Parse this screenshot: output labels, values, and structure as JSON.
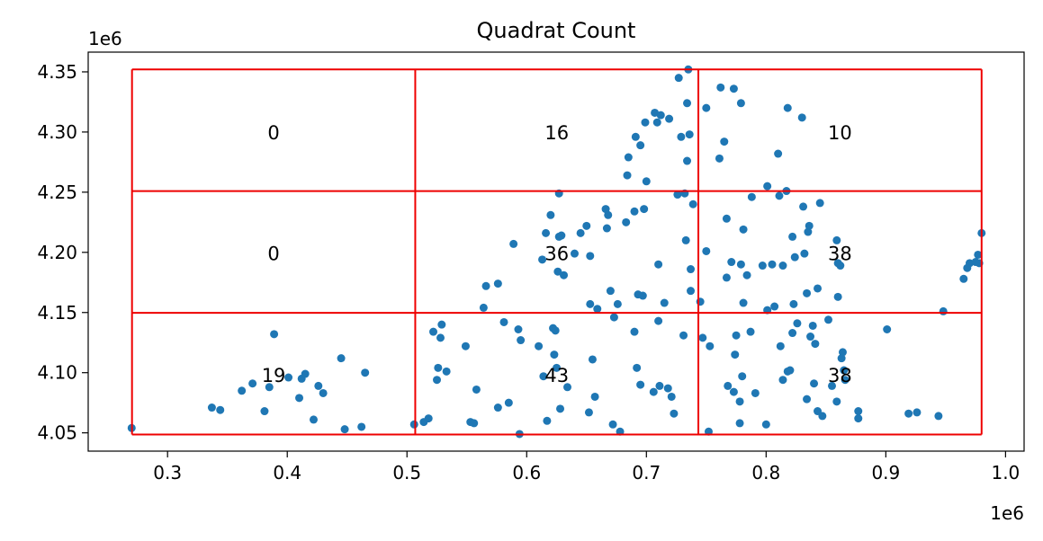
{
  "chart_data": {
    "type": "scatter",
    "title": "Quadrat Count",
    "x_offset_label": "1e6",
    "y_offset_label": "1e6",
    "xlim": [
      0.2337,
      1.0155
    ],
    "ylim": [
      4.0348,
      4.3664
    ],
    "x_ticks": [
      0.3,
      0.4,
      0.5,
      0.6,
      0.7,
      0.8,
      0.9,
      1.0
    ],
    "x_tick_labels": [
      "0.3",
      "0.4",
      "0.5",
      "0.6",
      "0.7",
      "0.8",
      "0.9",
      "1.0"
    ],
    "y_ticks": [
      4.05,
      4.1,
      4.15,
      4.2,
      4.25,
      4.3,
      4.35
    ],
    "y_tick_labels": [
      "4.05",
      "4.10",
      "4.15",
      "4.20",
      "4.25",
      "4.30",
      "4.35"
    ],
    "grid": false,
    "point_color": "#1f77b4",
    "grid_line_color": "#ee0000",
    "quadrat_x_edges": [
      0.2703,
      0.5069,
      0.7434,
      0.98
    ],
    "quadrat_y_edges": [
      4.0486,
      4.1497,
      4.2509,
      4.352
    ],
    "quadrat_counts": [
      {
        "x": 0.3886,
        "y": 4.2992,
        "label": "0"
      },
      {
        "x": 0.6252,
        "y": 4.2992,
        "label": "16"
      },
      {
        "x": 0.8617,
        "y": 4.2992,
        "label": "10"
      },
      {
        "x": 0.3886,
        "y": 4.1988,
        "label": "0"
      },
      {
        "x": 0.6252,
        "y": 4.1988,
        "label": "36"
      },
      {
        "x": 0.8617,
        "y": 4.1988,
        "label": "38"
      },
      {
        "x": 0.3886,
        "y": 4.0977,
        "label": "19"
      },
      {
        "x": 0.6252,
        "y": 4.0977,
        "label": "43"
      },
      {
        "x": 0.8617,
        "y": 4.0977,
        "label": "38"
      }
    ],
    "points": [
      [
        0.27,
        4.054
      ],
      [
        0.337,
        4.071
      ],
      [
        0.344,
        4.069
      ],
      [
        0.362,
        4.085
      ],
      [
        0.371,
        4.091
      ],
      [
        0.381,
        4.068
      ],
      [
        0.385,
        4.088
      ],
      [
        0.389,
        4.132
      ],
      [
        0.401,
        4.096
      ],
      [
        0.41,
        4.079
      ],
      [
        0.412,
        4.095
      ],
      [
        0.415,
        4.099
      ],
      [
        0.422,
        4.061
      ],
      [
        0.426,
        4.089
      ],
      [
        0.43,
        4.083
      ],
      [
        0.445,
        4.112
      ],
      [
        0.448,
        4.053
      ],
      [
        0.462,
        4.055
      ],
      [
        0.465,
        4.1
      ],
      [
        0.506,
        4.057
      ],
      [
        0.514,
        4.059
      ],
      [
        0.518,
        4.062
      ],
      [
        0.522,
        4.134
      ],
      [
        0.525,
        4.094
      ],
      [
        0.526,
        4.104
      ],
      [
        0.528,
        4.129
      ],
      [
        0.529,
        4.14
      ],
      [
        0.533,
        4.101
      ],
      [
        0.549,
        4.122
      ],
      [
        0.553,
        4.059
      ],
      [
        0.556,
        4.058
      ],
      [
        0.558,
        4.086
      ],
      [
        0.564,
        4.154
      ],
      [
        0.566,
        4.172
      ],
      [
        0.576,
        4.174
      ],
      [
        0.576,
        4.071
      ],
      [
        0.581,
        4.142
      ],
      [
        0.585,
        4.075
      ],
      [
        0.589,
        4.207
      ],
      [
        0.593,
        4.136
      ],
      [
        0.594,
        4.049
      ],
      [
        0.595,
        4.127
      ],
      [
        0.61,
        4.122
      ],
      [
        0.613,
        4.194
      ],
      [
        0.614,
        4.097
      ],
      [
        0.616,
        4.216
      ],
      [
        0.617,
        4.06
      ],
      [
        0.62,
        4.231
      ],
      [
        0.622,
        4.137
      ],
      [
        0.623,
        4.115
      ],
      [
        0.624,
        4.135
      ],
      [
        0.625,
        4.104
      ],
      [
        0.626,
        4.184
      ],
      [
        0.627,
        4.249
      ],
      [
        0.627,
        4.213
      ],
      [
        0.628,
        4.07
      ],
      [
        0.629,
        4.214
      ],
      [
        0.631,
        4.181
      ],
      [
        0.634,
        4.088
      ],
      [
        0.64,
        4.199
      ],
      [
        0.645,
        4.216
      ],
      [
        0.65,
        4.222
      ],
      [
        0.652,
        4.067
      ],
      [
        0.653,
        4.157
      ],
      [
        0.653,
        4.197
      ],
      [
        0.655,
        4.111
      ],
      [
        0.657,
        4.08
      ],
      [
        0.659,
        4.153
      ],
      [
        0.666,
        4.236
      ],
      [
        0.667,
        4.22
      ],
      [
        0.668,
        4.231
      ],
      [
        0.67,
        4.168
      ],
      [
        0.672,
        4.057
      ],
      [
        0.673,
        4.146
      ],
      [
        0.676,
        4.157
      ],
      [
        0.678,
        4.051
      ],
      [
        0.683,
        4.225
      ],
      [
        0.684,
        4.264
      ],
      [
        0.685,
        4.279
      ],
      [
        0.69,
        4.134
      ],
      [
        0.69,
        4.234
      ],
      [
        0.691,
        4.296
      ],
      [
        0.692,
        4.104
      ],
      [
        0.693,
        4.165
      ],
      [
        0.695,
        4.289
      ],
      [
        0.695,
        4.09
      ],
      [
        0.697,
        4.164
      ],
      [
        0.698,
        4.236
      ],
      [
        0.699,
        4.308
      ],
      [
        0.7,
        4.259
      ],
      [
        0.706,
        4.084
      ],
      [
        0.707,
        4.316
      ],
      [
        0.709,
        4.308
      ],
      [
        0.71,
        4.143
      ],
      [
        0.71,
        4.19
      ],
      [
        0.711,
        4.089
      ],
      [
        0.712,
        4.314
      ],
      [
        0.715,
        4.158
      ],
      [
        0.718,
        4.087
      ],
      [
        0.719,
        4.311
      ],
      [
        0.721,
        4.08
      ],
      [
        0.723,
        4.066
      ],
      [
        0.726,
        4.248
      ],
      [
        0.727,
        4.345
      ],
      [
        0.729,
        4.296
      ],
      [
        0.731,
        4.131
      ],
      [
        0.732,
        4.249
      ],
      [
        0.733,
        4.21
      ],
      [
        0.734,
        4.276
      ],
      [
        0.734,
        4.324
      ],
      [
        0.735,
        4.352
      ],
      [
        0.736,
        4.298
      ],
      [
        0.737,
        4.186
      ],
      [
        0.737,
        4.168
      ],
      [
        0.739,
        4.24
      ],
      [
        0.745,
        4.159
      ],
      [
        0.747,
        4.129
      ],
      [
        0.75,
        4.201
      ],
      [
        0.75,
        4.32
      ],
      [
        0.752,
        4.051
      ],
      [
        0.753,
        4.122
      ],
      [
        0.761,
        4.278
      ],
      [
        0.762,
        4.337
      ],
      [
        0.765,
        4.292
      ],
      [
        0.767,
        4.228
      ],
      [
        0.767,
        4.179
      ],
      [
        0.768,
        4.089
      ],
      [
        0.771,
        4.192
      ],
      [
        0.773,
        4.084
      ],
      [
        0.773,
        4.336
      ],
      [
        0.774,
        4.115
      ],
      [
        0.775,
        4.131
      ],
      [
        0.778,
        4.058
      ],
      [
        0.778,
        4.076
      ],
      [
        0.779,
        4.19
      ],
      [
        0.779,
        4.324
      ],
      [
        0.78,
        4.097
      ],
      [
        0.781,
        4.158
      ],
      [
        0.781,
        4.219
      ],
      [
        0.784,
        4.181
      ],
      [
        0.787,
        4.134
      ],
      [
        0.788,
        4.246
      ],
      [
        0.791,
        4.083
      ],
      [
        0.797,
        4.189
      ],
      [
        0.8,
        4.057
      ],
      [
        0.801,
        4.152
      ],
      [
        0.801,
        4.255
      ],
      [
        0.805,
        4.19
      ],
      [
        0.807,
        4.155
      ],
      [
        0.81,
        4.282
      ],
      [
        0.811,
        4.247
      ],
      [
        0.812,
        4.122
      ],
      [
        0.814,
        4.094
      ],
      [
        0.814,
        4.189
      ],
      [
        0.817,
        4.251
      ],
      [
        0.818,
        4.101
      ],
      [
        0.818,
        4.32
      ],
      [
        0.82,
        4.102
      ],
      [
        0.822,
        4.133
      ],
      [
        0.822,
        4.213
      ],
      [
        0.823,
        4.157
      ],
      [
        0.824,
        4.196
      ],
      [
        0.826,
        4.141
      ],
      [
        0.83,
        4.312
      ],
      [
        0.831,
        4.238
      ],
      [
        0.832,
        4.199
      ],
      [
        0.834,
        4.078
      ],
      [
        0.834,
        4.166
      ],
      [
        0.835,
        4.217
      ],
      [
        0.836,
        4.222
      ],
      [
        0.837,
        4.13
      ],
      [
        0.839,
        4.139
      ],
      [
        0.84,
        4.091
      ],
      [
        0.841,
        4.124
      ],
      [
        0.843,
        4.17
      ],
      [
        0.843,
        4.068
      ],
      [
        0.845,
        4.241
      ],
      [
        0.847,
        4.064
      ],
      [
        0.852,
        4.144
      ],
      [
        0.855,
        4.089
      ],
      [
        0.859,
        4.076
      ],
      [
        0.859,
        4.21
      ],
      [
        0.86,
        4.191
      ],
      [
        0.86,
        4.163
      ],
      [
        0.862,
        4.189
      ],
      [
        0.863,
        4.112
      ],
      [
        0.864,
        4.117
      ],
      [
        0.865,
        4.102
      ],
      [
        0.866,
        4.094
      ],
      [
        0.877,
        4.068
      ],
      [
        0.877,
        4.062
      ],
      [
        0.901,
        4.136
      ],
      [
        0.919,
        4.066
      ],
      [
        0.926,
        4.067
      ],
      [
        0.944,
        4.064
      ],
      [
        0.948,
        4.151
      ],
      [
        0.965,
        4.178
      ],
      [
        0.968,
        4.187
      ],
      [
        0.97,
        4.191
      ],
      [
        0.975,
        4.192
      ],
      [
        0.977,
        4.198
      ],
      [
        0.978,
        4.191
      ],
      [
        0.98,
        4.216
      ]
    ]
  }
}
